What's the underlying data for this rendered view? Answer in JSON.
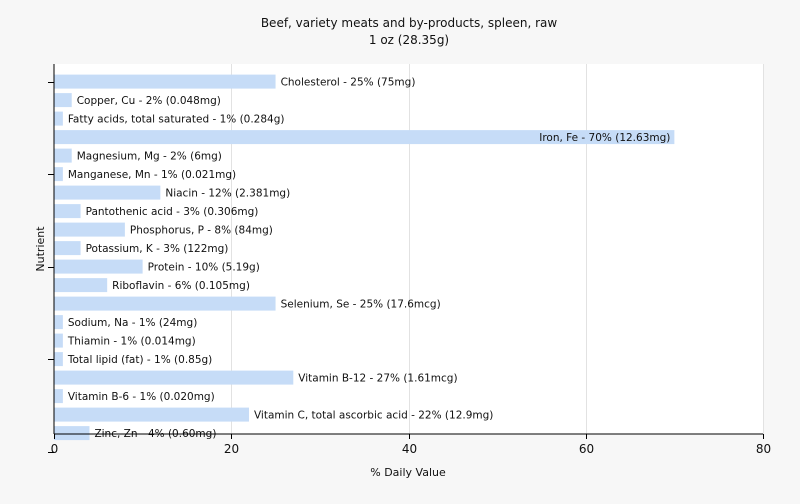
{
  "chart_data": {
    "type": "bar",
    "orientation": "horizontal",
    "title": "Beef, variety meats and by-products, spleen, raw",
    "subtitle": "1 oz (28.35g)",
    "xlabel": "% Daily Value",
    "ylabel": "Nutrient",
    "xlim": [
      0,
      80
    ],
    "xticks": [
      0,
      20,
      40,
      60,
      80
    ],
    "grid": true,
    "bar_color": "#c6dcf7",
    "background_color": "#f7f7f7",
    "plot_background_color": "#ffffff",
    "categories": [
      "Cholesterol",
      "Copper, Cu",
      "Fatty acids, total saturated",
      "Iron, Fe",
      "Magnesium, Mg",
      "Manganese, Mn",
      "Niacin",
      "Pantothenic acid",
      "Phosphorus, P",
      "Potassium, K",
      "Protein",
      "Riboflavin",
      "Selenium, Se",
      "Sodium, Na",
      "Thiamin",
      "Total lipid (fat)",
      "Vitamin B-12",
      "Vitamin B-6",
      "Vitamin C, total ascorbic acid",
      "Zinc, Zn"
    ],
    "values": [
      25,
      2,
      1,
      70,
      2,
      1,
      12,
      3,
      8,
      3,
      10,
      6,
      25,
      1,
      1,
      1,
      27,
      1,
      22,
      4
    ],
    "labels": [
      "Cholesterol - 25% (75mg)",
      "Copper, Cu - 2% (0.048mg)",
      "Fatty acids, total saturated - 1% (0.284g)",
      "Iron, Fe - 70% (12.63mg)",
      "Magnesium, Mg - 2% (6mg)",
      "Manganese, Mn - 1% (0.021mg)",
      "Niacin - 12% (2.381mg)",
      "Pantothenic acid - 3% (0.306mg)",
      "Phosphorus, P - 8% (84mg)",
      "Potassium, K - 3% (122mg)",
      "Protein - 10% (5.19g)",
      "Riboflavin - 6% (0.105mg)",
      "Selenium, Se - 25% (17.6mcg)",
      "Sodium, Na - 1% (24mg)",
      "Thiamin - 1% (0.014mg)",
      "Total lipid (fat) - 1% (0.85g)",
      "Vitamin B-12 - 27% (1.61mcg)",
      "Vitamin B-6 - 1% (0.020mg)",
      "Vitamin C, total ascorbic acid - 22% (12.9mg)",
      "Zinc, Zn - 4% (0.60mg)"
    ]
  }
}
